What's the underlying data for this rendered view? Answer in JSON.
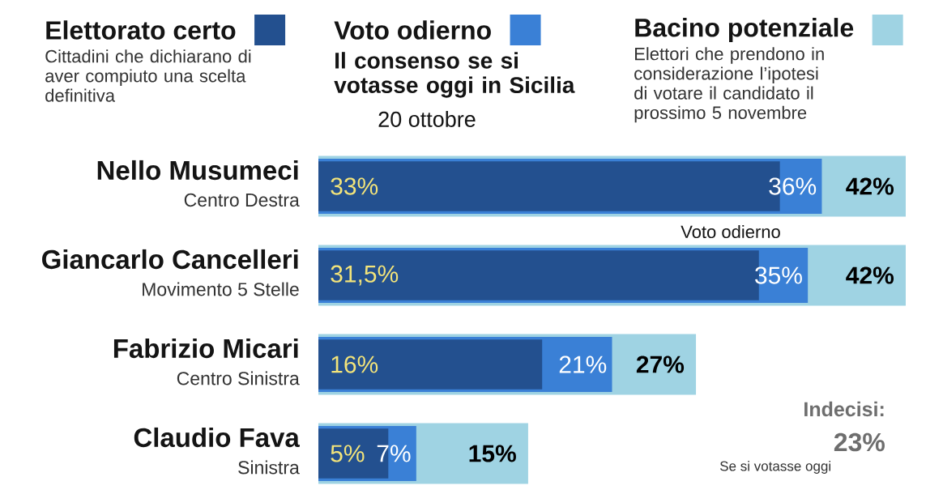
{
  "chart_data": {
    "type": "bar",
    "orientation": "horizontal",
    "categories": [
      "Nello Musumeci",
      "Giancarlo Cancelleri",
      "Fabrizio Micari",
      "Claudio Fava"
    ],
    "series": [
      {
        "name": "Elettorato certo",
        "color": "#23508f",
        "values": [
          33,
          31.5,
          16,
          5
        ],
        "value_labels": [
          "33%",
          "31,5%",
          "16%",
          "5%"
        ]
      },
      {
        "name": "Voto odierno",
        "color": "#3a80d6",
        "values": [
          36,
          35,
          21,
          7
        ],
        "value_labels": [
          "36%",
          "35%",
          "21%",
          "7%"
        ]
      },
      {
        "name": "Bacino potenziale",
        "color": "#9fd3e3",
        "values": [
          42,
          42,
          27,
          15
        ],
        "value_labels": [
          "42%",
          "42%",
          "27%",
          "15%"
        ]
      }
    ],
    "tick_labels": "y",
    "legend": "top",
    "annotations": [
      "Cittadini che dichiarano di aver compiuto una scelta definitiva",
      "Il consenso se si votasse oggi in Sicilia",
      "20 ottobre",
      "Elettori che prendono in considerazione l’ipotesi di votare il candidato il prossimo 5 novembre",
      "Centro Destra",
      "Movimento 5 Stelle",
      "Centro Sinistra",
      "Sinistra",
      "Voto odierno",
      "Indecisi:",
      "23%",
      "Se si votasse oggi"
    ]
  }
}
